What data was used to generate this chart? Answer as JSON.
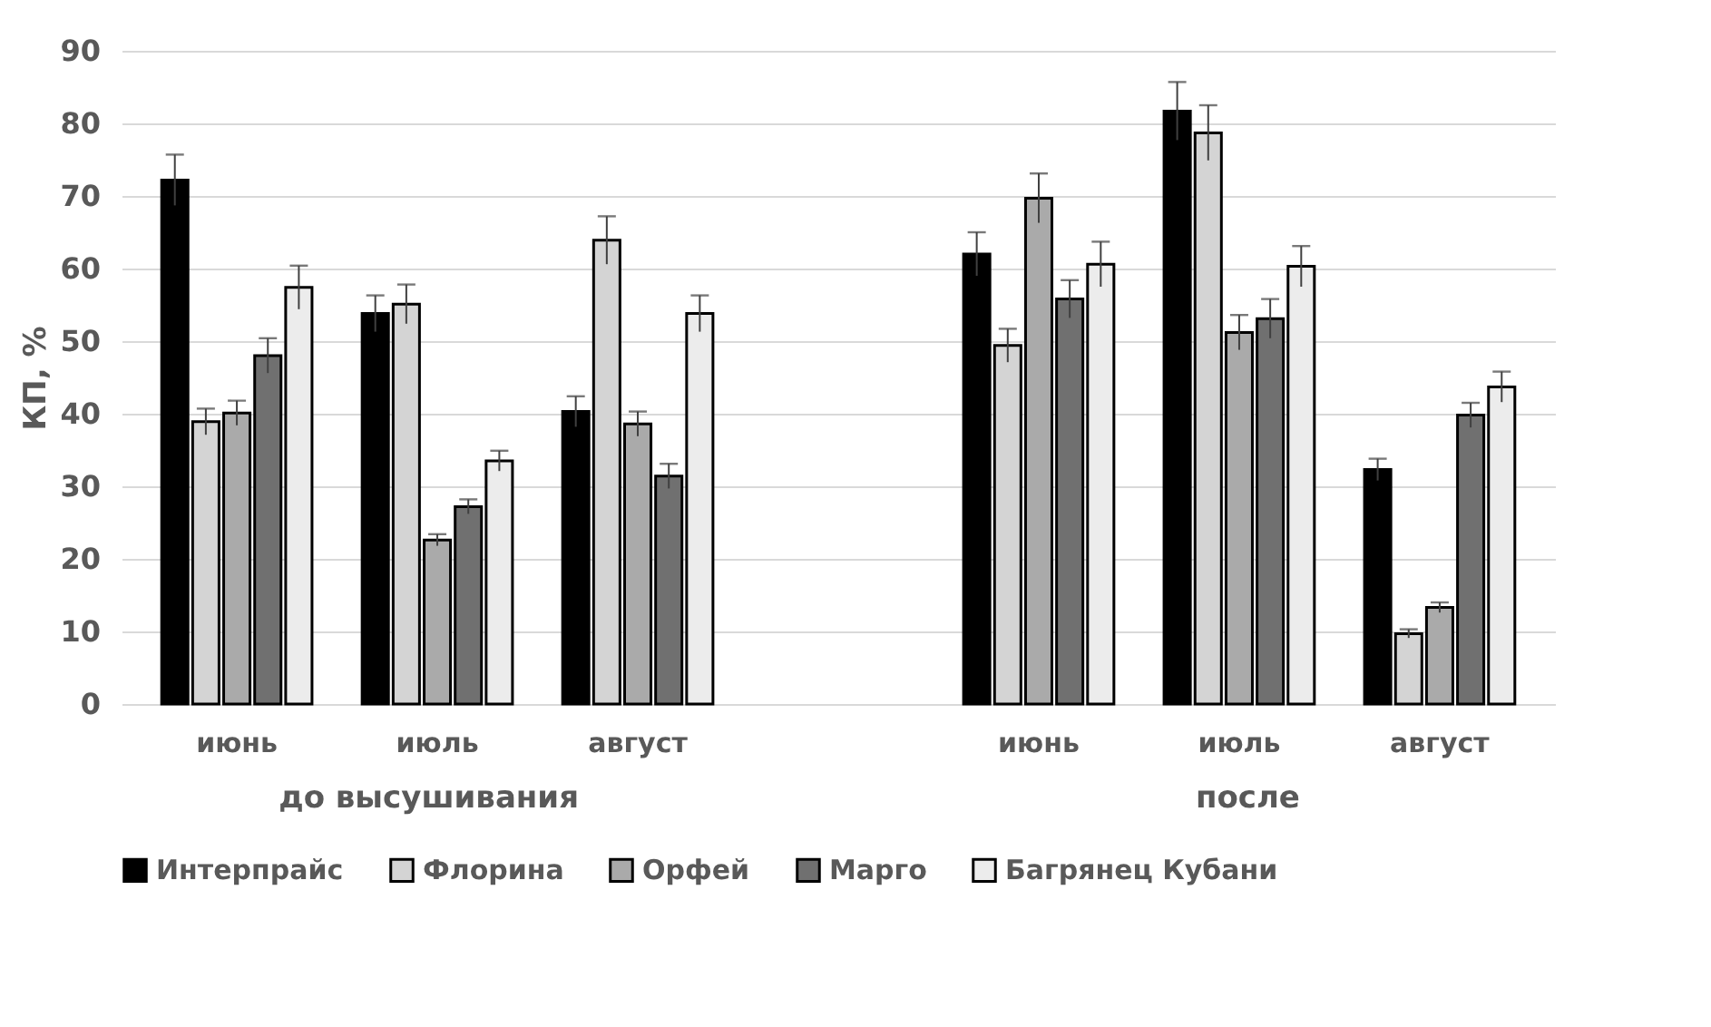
{
  "chart_data": {
    "type": "bar",
    "ylabel": "КП, %",
    "categories": [
      "июнь",
      "июль",
      "август",
      null,
      "июнь",
      "июль",
      "август"
    ],
    "annotations": [
      "до высушивания",
      "после"
    ],
    "series": [
      {
        "name": "Интерпрайс",
        "color": "#000000",
        "values": [
          72.2,
          53.8,
          40.3,
          null,
          62.0,
          81.7,
          32.3
        ],
        "errors": [
          3.5,
          2.5,
          2.1,
          null,
          3.0,
          4.0,
          1.5
        ]
      },
      {
        "name": "Флорина",
        "color": "#d4d4d4",
        "values": [
          38.9,
          55.1,
          63.9,
          null,
          49.4,
          78.7,
          9.7
        ],
        "errors": [
          1.8,
          2.7,
          3.3,
          null,
          2.3,
          3.8,
          0.6
        ]
      },
      {
        "name": "Орфей",
        "color": "#aaaaaa",
        "values": [
          40.1,
          22.6,
          38.6,
          null,
          69.7,
          51.2,
          13.3
        ],
        "errors": [
          1.7,
          0.8,
          1.7,
          null,
          3.4,
          2.4,
          0.7
        ]
      },
      {
        "name": "Марго",
        "color": "#707070",
        "values": [
          48.0,
          27.2,
          31.4,
          null,
          55.8,
          53.1,
          39.8
        ],
        "errors": [
          2.4,
          1.0,
          1.7,
          null,
          2.6,
          2.7,
          1.7
        ]
      },
      {
        "name": "Багрянец Кубани",
        "color": "#ececec",
        "values": [
          57.4,
          33.5,
          53.8,
          null,
          60.6,
          60.3,
          43.7
        ],
        "errors": [
          3.0,
          1.4,
          2.5,
          null,
          3.1,
          2.8,
          2.1
        ]
      }
    ],
    "ylim": [
      0,
      90
    ],
    "yticks": [
      0,
      10,
      20,
      30,
      40,
      50,
      60,
      70,
      80,
      90
    ],
    "grid": "y",
    "legend": "bottom"
  }
}
